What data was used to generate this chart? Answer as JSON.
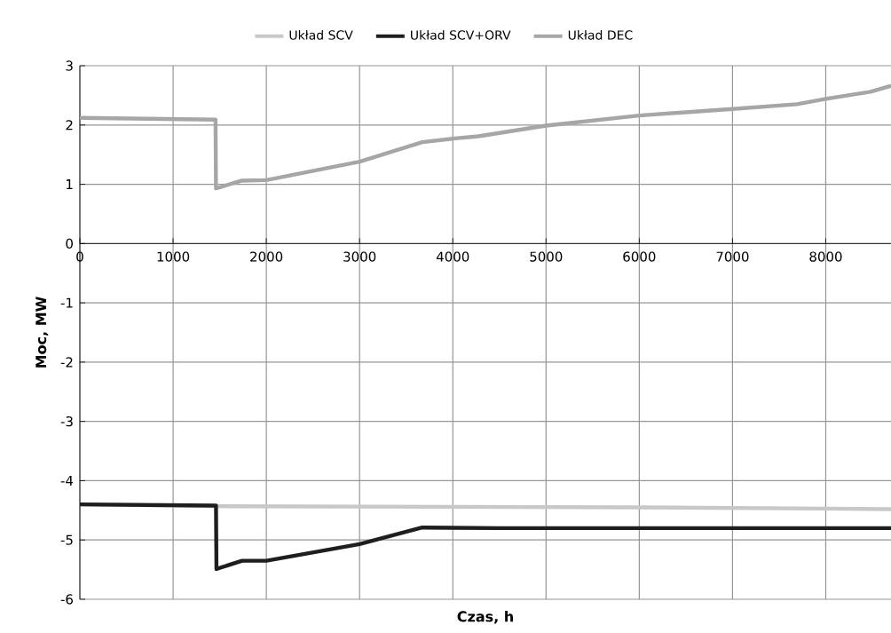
{
  "chart_data": {
    "type": "line",
    "xlabel": "Czas, h",
    "ylabel": "Moc, MW",
    "xlim": [
      0,
      8700
    ],
    "xticks": [
      0,
      1000,
      2000,
      3000,
      4000,
      5000,
      6000,
      7000,
      8000
    ],
    "ylim": [
      -6,
      3
    ],
    "yticks": [
      -6,
      -5,
      -4,
      -3,
      -2,
      -1,
      0,
      1,
      2,
      3
    ],
    "grid": true,
    "legend": "top",
    "marker": "none",
    "line_style": "solid",
    "series": [
      {
        "name": "Układ SCV",
        "color": "#c8c8c8",
        "x": [
          0,
          1460,
          4000,
          6000,
          8000,
          8700
        ],
        "values": [
          -4.4,
          -4.43,
          -4.44,
          -4.45,
          -4.47,
          -4.48
        ]
      },
      {
        "name": "Układ SCV+ORV",
        "color": "#1e1e1e",
        "x": [
          0,
          1460,
          1465,
          1740,
          2000,
          3000,
          3672,
          4500,
          8700
        ],
        "values": [
          -4.4,
          -4.42,
          -5.49,
          -5.35,
          -5.35,
          -5.07,
          -4.79,
          -4.8,
          -4.8
        ]
      },
      {
        "name": "Układ DEC",
        "color": "#a6a6a6",
        "x": [
          0,
          1455,
          1460,
          1730,
          2000,
          3000,
          3672,
          4000,
          4274,
          5000,
          6000,
          7000,
          7692,
          8000,
          8480,
          8700
        ],
        "values": [
          2.12,
          2.09,
          0.93,
          1.06,
          1.07,
          1.38,
          1.71,
          1.77,
          1.81,
          1.99,
          2.16,
          2.27,
          2.35,
          2.44,
          2.56,
          2.66
        ]
      }
    ]
  }
}
